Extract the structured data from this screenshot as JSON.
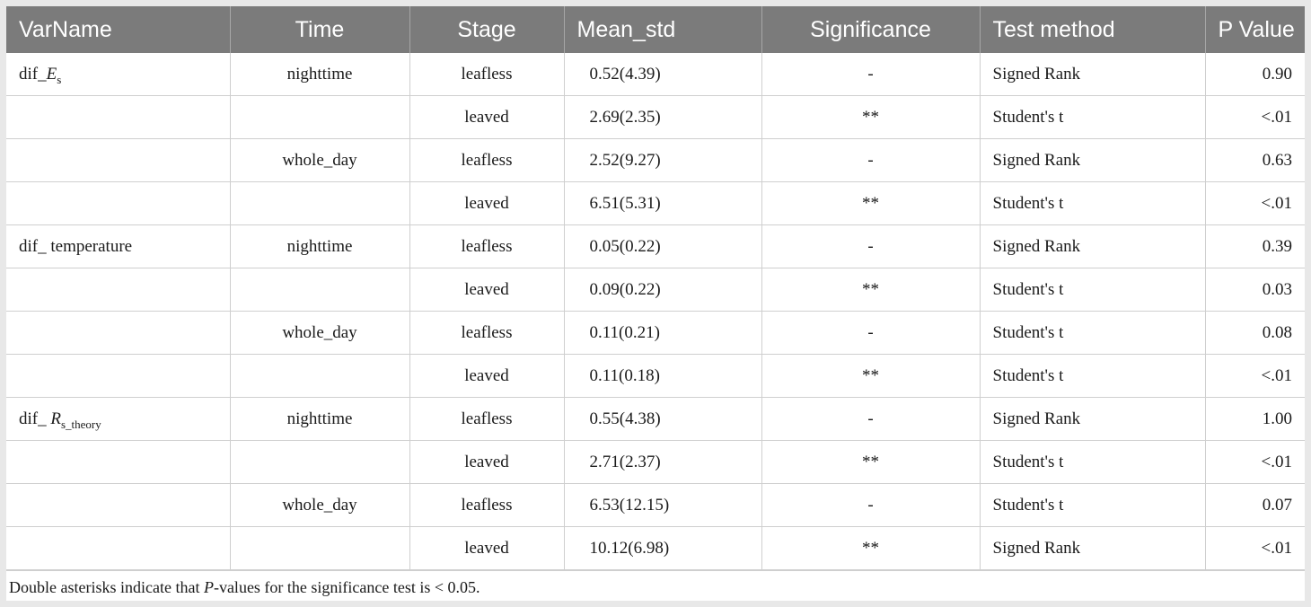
{
  "table": {
    "columns": [
      "VarName",
      "Time",
      "Stage",
      "Mean_std",
      "Significance",
      "Test method",
      "P Value"
    ],
    "rows": [
      {
        "var": {
          "prefix": "dif_",
          "symbol": "E",
          "subscript": "s"
        },
        "time": "nighttime",
        "stage": "leafless",
        "mean_std": "0.52(4.39)",
        "significance": "-",
        "test_method": "Signed Rank",
        "p_value": "0.90"
      },
      {
        "var": null,
        "time": "",
        "stage": "leaved",
        "mean_std": "2.69(2.35)",
        "significance": "**",
        "test_method": "Student's t",
        "p_value": "<.01"
      },
      {
        "var": null,
        "time": "whole_day",
        "stage": "leafless",
        "mean_std": "2.52(9.27)",
        "significance": "-",
        "test_method": "Signed Rank",
        "p_value": "0.63"
      },
      {
        "var": null,
        "time": "",
        "stage": "leaved",
        "mean_std": "6.51(5.31)",
        "significance": "**",
        "test_method": "Student's t",
        "p_value": "<.01"
      },
      {
        "var": {
          "prefix": "dif_  temperature",
          "symbol": "",
          "subscript": ""
        },
        "time": "nighttime",
        "stage": "leafless",
        "mean_std": "0.05(0.22)",
        "significance": "-",
        "test_method": "Signed Rank",
        "p_value": "0.39"
      },
      {
        "var": null,
        "time": "",
        "stage": "leaved",
        "mean_std": "0.09(0.22)",
        "significance": "**",
        "test_method": "Student's t",
        "p_value": "0.03"
      },
      {
        "var": null,
        "time": "whole_day",
        "stage": "leafless",
        "mean_std": "0.11(0.21)",
        "significance": "-",
        "test_method": "Student's t",
        "p_value": "0.08"
      },
      {
        "var": null,
        "time": "",
        "stage": "leaved",
        "mean_std": "0.11(0.18)",
        "significance": "**",
        "test_method": "Student's t",
        "p_value": "<.01"
      },
      {
        "var": {
          "prefix": "dif_ ",
          "symbol": "R",
          "subscript": "s_theory"
        },
        "time": "nighttime",
        "stage": "leafless",
        "mean_std": "0.55(4.38)",
        "significance": "-",
        "test_method": "Signed Rank",
        "p_value": "1.00"
      },
      {
        "var": null,
        "time": "",
        "stage": "leaved",
        "mean_std": "2.71(2.37)",
        "significance": "**",
        "test_method": "Student's t",
        "p_value": "<.01"
      },
      {
        "var": null,
        "time": "whole_day",
        "stage": "leafless",
        "mean_std": "6.53(12.15)",
        "significance": "-",
        "test_method": "Student's t",
        "p_value": "0.07"
      },
      {
        "var": null,
        "time": "",
        "stage": "leaved",
        "mean_std": "10.12(6.98)",
        "significance": "**",
        "test_method": "Signed Rank",
        "p_value": "<.01"
      }
    ]
  },
  "footnote": {
    "before": "Double asterisks indicate that ",
    "italic": "P",
    "after": "-values for the significance test is < 0.05."
  },
  "colors": {
    "header_bg": "#7b7b7b",
    "header_text": "#ffffff",
    "grid": "#cfcfcf",
    "page_bg": "#e8e8e8"
  }
}
